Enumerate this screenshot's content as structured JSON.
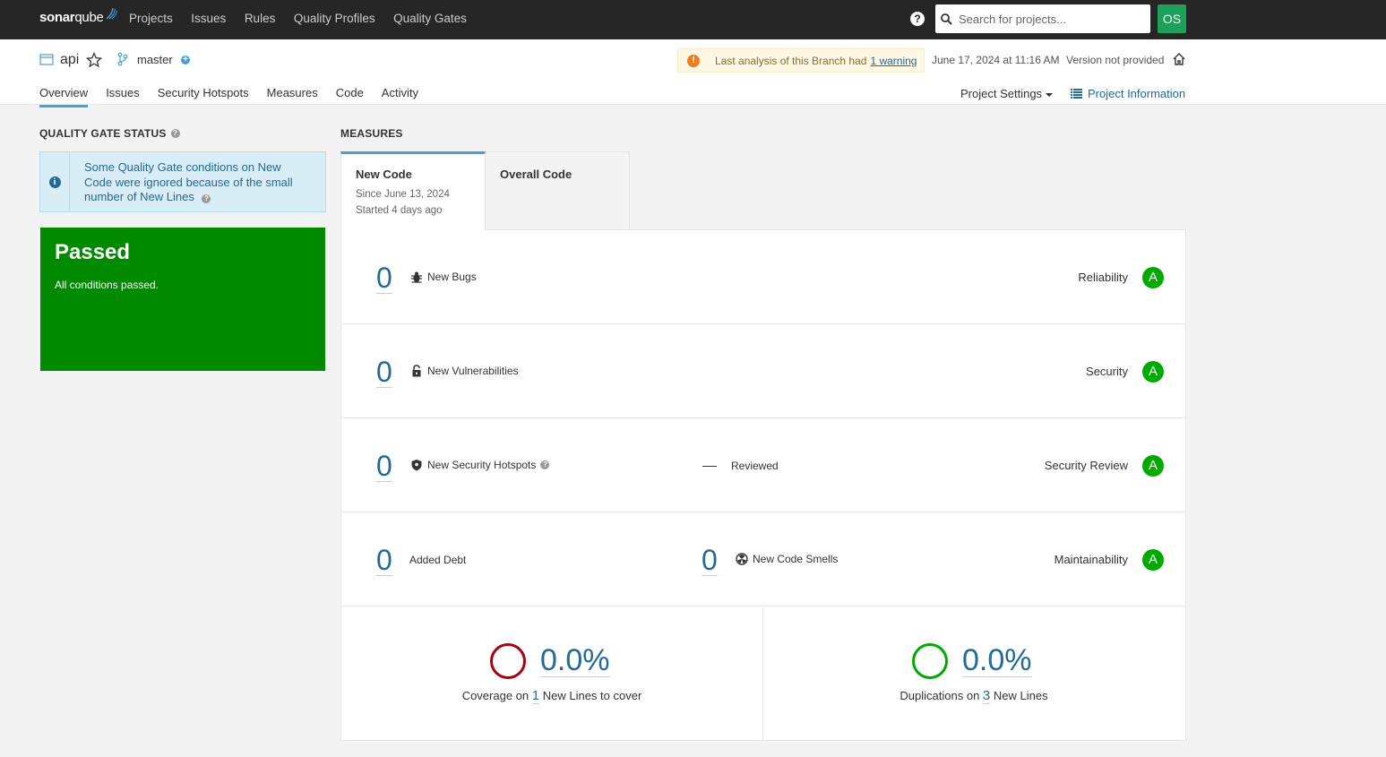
{
  "nav": {
    "logo_sonar": "sonar",
    "logo_qube": "qube",
    "links": [
      "Projects",
      "Issues",
      "Rules",
      "Quality Profiles",
      "Quality Gates"
    ],
    "search_placeholder": "Search for projects...",
    "avatar": "OS"
  },
  "component": {
    "name": "api",
    "branch": "master",
    "warning_text": "Last analysis of this Branch had",
    "warning_link": "1 warning",
    "analysis_date": "June 17, 2024 at 11:16 AM",
    "version": "Version not provided",
    "tabs": [
      "Overview",
      "Issues",
      "Security Hotspots",
      "Measures",
      "Code",
      "Activity"
    ],
    "project_settings": "Project Settings",
    "project_information": "Project Information"
  },
  "quality_gate": {
    "title": "QUALITY GATE STATUS",
    "info_message": "Some Quality Gate conditions on New Code were ignored because of the small number of New Lines",
    "status": "Passed",
    "status_detail": "All conditions passed.",
    "status_color": "#008a00"
  },
  "measures": {
    "title": "MEASURES",
    "new_code_tab": {
      "title": "New Code",
      "since": "Since June 13, 2024",
      "started": "Started 4 days ago"
    },
    "overall_tab": {
      "title": "Overall Code"
    },
    "rows": [
      {
        "value": "0",
        "label": "New Bugs",
        "icon": "bug-icon",
        "rating_label": "Reliability",
        "rating": "A"
      },
      {
        "value": "0",
        "label": "New Vulnerabilities",
        "icon": "lock-icon",
        "rating_label": "Security",
        "rating": "A"
      },
      {
        "value": "0",
        "label": "New Security Hotspots",
        "icon": "shield-icon",
        "reviewed_label": "Reviewed",
        "rating_label": "Security Review",
        "rating": "A"
      },
      {
        "value": "0",
        "label": "Added Debt",
        "smells_value": "0",
        "smells_label": "New Code Smells",
        "rating_label": "Maintainability",
        "rating": "A"
      }
    ],
    "coverage": {
      "value": "0.0%",
      "prefix": "Coverage on",
      "lines": "1",
      "suffix": "New Lines to cover",
      "color": "#a4030f"
    },
    "duplications": {
      "value": "0.0%",
      "prefix": "Duplications on",
      "lines": "3",
      "suffix": "New Lines",
      "color": "#00aa00"
    }
  }
}
